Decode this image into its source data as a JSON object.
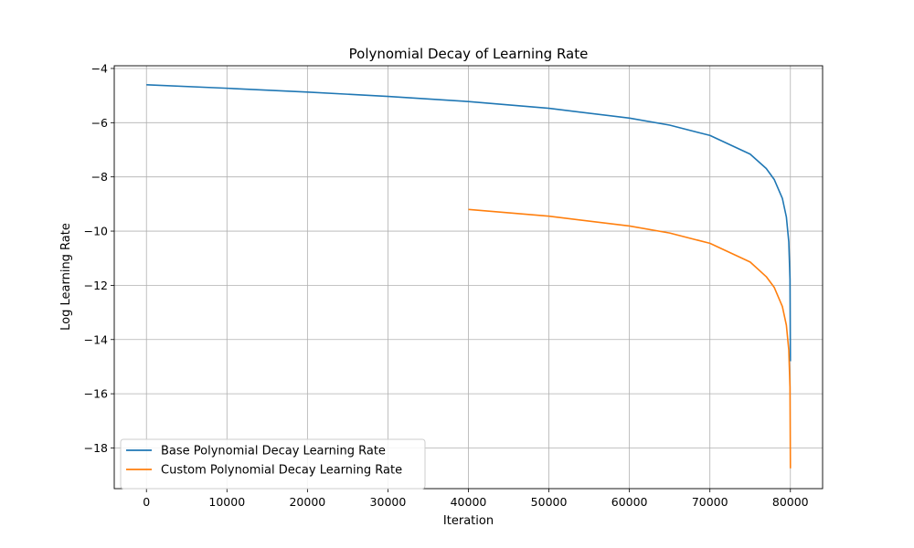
{
  "chart_data": {
    "type": "line",
    "title": "Polynomial Decay of Learning Rate",
    "xlabel": "Iteration",
    "ylabel": "Log Learning Rate",
    "xlim": [
      -4000,
      84000
    ],
    "ylim": [
      -19.5,
      -3.9
    ],
    "xticks": [
      0,
      10000,
      20000,
      30000,
      40000,
      50000,
      60000,
      70000,
      80000
    ],
    "yticks": [
      -4,
      -6,
      -8,
      -10,
      -12,
      -14,
      -16,
      -18
    ],
    "grid": true,
    "legend_position": "lower-left",
    "series": [
      {
        "name": "Base Polynomial Decay Learning Rate",
        "color": "#1f77b4",
        "x": [
          0,
          10000,
          20000,
          30000,
          40000,
          50000,
          60000,
          65000,
          70000,
          75000,
          77000,
          78000,
          79000,
          79500,
          79800,
          79950,
          80000
        ],
        "y": [
          -4.6,
          -4.73,
          -4.87,
          -5.03,
          -5.22,
          -5.47,
          -5.83,
          -6.09,
          -6.47,
          -7.16,
          -7.69,
          -8.1,
          -8.79,
          -9.48,
          -10.4,
          -11.78,
          -14.8
        ]
      },
      {
        "name": "Custom Polynomial Decay Learning Rate",
        "color": "#ff7f0e",
        "x": [
          40000,
          50000,
          60000,
          65000,
          70000,
          75000,
          77000,
          78000,
          79000,
          79500,
          79800,
          79950,
          80000
        ],
        "y": [
          -9.2,
          -9.45,
          -9.81,
          -10.07,
          -10.45,
          -11.14,
          -11.68,
          -12.08,
          -12.78,
          -13.47,
          -14.39,
          -15.77,
          -18.75
        ]
      }
    ]
  }
}
